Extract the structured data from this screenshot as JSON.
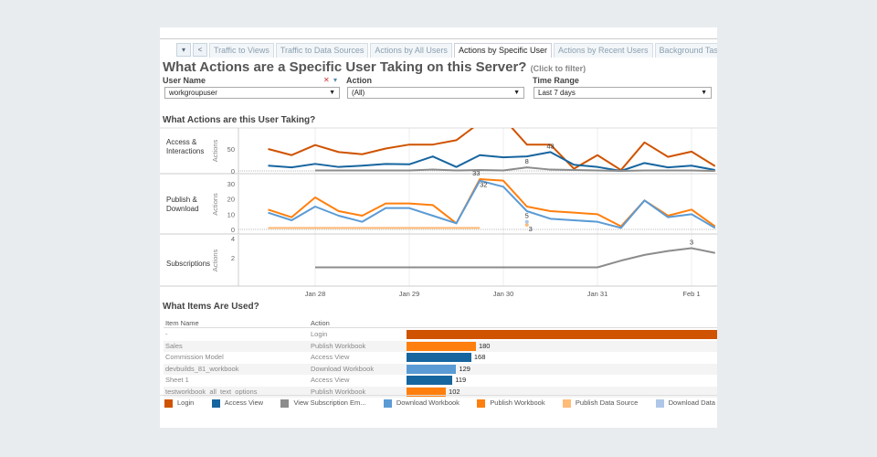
{
  "tabs": {
    "controls": {
      "menu": "▾",
      "prev": "<"
    },
    "items": [
      {
        "label": "Traffic to Views",
        "active": false
      },
      {
        "label": "Traffic to Data Sources",
        "active": false
      },
      {
        "label": "Actions by All Users",
        "active": false
      },
      {
        "label": "Actions by Specific User",
        "active": true
      },
      {
        "label": "Actions by Recent Users",
        "active": false
      },
      {
        "label": "Background Tasks",
        "active": false
      }
    ]
  },
  "header": {
    "title": "What Actions are a Specific User Taking on this Server?",
    "hint": "(Click to filter)"
  },
  "filters": {
    "user": {
      "label": "User Name",
      "value": "workgroupuser"
    },
    "action": {
      "label": "Action",
      "value": "(All)"
    },
    "time": {
      "label": "Time Range",
      "value": "Last 7 days"
    }
  },
  "colors": {
    "Login": "#cf5300",
    "Access View": "#17659f",
    "View Subscription Email": "#8c8c8c",
    "Download Workbook": "#5b9bd5",
    "Publish Workbook": "#ff7f0e",
    "Publish Data Source": "#ffbb78",
    "Download Data Source": "#aec7e8"
  },
  "chart_data": [
    {
      "type": "line",
      "title": "What Actions are this User Taking?",
      "x": [
        "Jan 27 12:00",
        "Jan 27 18:00",
        "Jan 28 00:00",
        "Jan 28 06:00",
        "Jan 28 12:00",
        "Jan 28 18:00",
        "Jan 29 00:00",
        "Jan 29 06:00",
        "Jan 29 12:00",
        "Jan 29 18:00",
        "Jan 30 00:00",
        "Jan 30 06:00",
        "Jan 30 12:00",
        "Jan 30 18:00",
        "Jan 31 00:00",
        "Jan 31 06:00",
        "Jan 31 12:00",
        "Jan 31 18:00",
        "Feb 1 00:00",
        "Feb 1 06:00"
      ],
      "x_ticks": [
        "Jan 28",
        "Jan 29",
        "Jan 30",
        "Jan 31",
        "Feb 1"
      ],
      "grid": true,
      "panes": [
        {
          "label": "Access & Interactions",
          "ylabel": "Actions",
          "y_ticks": [
            0,
            50
          ],
          "ylim": [
            0,
            95
          ],
          "series": [
            {
              "name": "Login",
              "values": [
                50,
                36,
                59,
                43,
                38,
                51,
                60,
                60,
                70,
                110,
                120,
                60,
                60,
                5,
                36,
                2,
                65,
                32,
                44,
                11
              ]
            },
            {
              "name": "Access View",
              "values": [
                12,
                8,
                16,
                9,
                12,
                16,
                15,
                33,
                9,
                36,
                31,
                33,
                43,
                14,
                9,
                0,
                18,
                8,
                12,
                2
              ]
            },
            {
              "name": "View Subscription Email",
              "values": [
                null,
                null,
                1,
                1,
                1,
                1,
                1,
                3,
                1,
                2,
                1,
                8,
                3,
                2,
                1,
                0,
                1,
                1,
                1,
                0
              ]
            }
          ],
          "labels": [
            {
              "series": "View Subscription Email",
              "index": 11,
              "text": "8"
            },
            {
              "series": "Access View",
              "index": 12,
              "text": "43"
            }
          ]
        },
        {
          "label": "Publish & Download",
          "ylabel": "Actions",
          "y_ticks": [
            0,
            10,
            20,
            30
          ],
          "ylim": [
            0,
            35
          ],
          "series": [
            {
              "name": "Publish Workbook",
              "values": [
                13,
                8,
                21,
                12,
                9,
                17,
                17,
                16,
                4,
                33,
                32,
                15,
                12,
                11,
                10,
                2,
                19,
                9,
                13,
                2
              ]
            },
            {
              "name": "Download Workbook",
              "values": [
                11,
                6,
                15,
                9,
                5,
                14,
                14,
                9,
                4,
                32,
                28,
                12,
                7,
                6,
                5,
                1,
                19,
                8,
                10,
                1
              ]
            },
            {
              "name": "Publish Data Source",
              "values": [
                1,
                1,
                1,
                1,
                1,
                1,
                1,
                1,
                1,
                1,
                null,
                3,
                null,
                null,
                null,
                null,
                null,
                null,
                null,
                null
              ]
            },
            {
              "name": "Download Data Source",
              "values": [
                null,
                null,
                null,
                null,
                null,
                null,
                null,
                null,
                null,
                null,
                null,
                5,
                null,
                null,
                null,
                null,
                null,
                null,
                null,
                null
              ]
            }
          ],
          "labels": [
            {
              "series": "Publish Workbook",
              "index": 9,
              "text": "33"
            },
            {
              "series": "Download Workbook",
              "index": 9,
              "text": "32"
            },
            {
              "series": "Download Data Source",
              "index": 11,
              "text": "5"
            },
            {
              "series": "Publish Data Source",
              "index": 11,
              "text": "3"
            }
          ]
        },
        {
          "label": "Subscriptions",
          "ylabel": "Actions",
          "y_ticks": [
            2,
            4
          ],
          "ylim": [
            0.4,
            4
          ],
          "series": [
            {
              "name": "View Subscription Email",
              "values": [
                null,
                null,
                1,
                1,
                1,
                1,
                1,
                1,
                1,
                1,
                1,
                1,
                1,
                1,
                1,
                1.7,
                2.3,
                2.7,
                3,
                2.5
              ]
            }
          ],
          "labels": [
            {
              "series": "View Subscription Email",
              "index": 18,
              "text": "3"
            }
          ]
        }
      ]
    },
    {
      "type": "bar",
      "title": "What Items Are Used?",
      "columns": [
        "Item Name",
        "Action"
      ],
      "rows": [
        {
          "item": "-",
          "action": "Login",
          "value": null
        },
        {
          "item": "Sales",
          "action": "Publish Workbook",
          "value": 180
        },
        {
          "item": "Commission Model",
          "action": "Access View",
          "value": 168
        },
        {
          "item": "devbuilds_81_workbook",
          "action": "Download Workbook",
          "value": 129
        },
        {
          "item": "Sheet 1",
          "action": "Access View",
          "value": 119
        },
        {
          "item": "testworkbook_all_text_options",
          "action": "Publish Workbook",
          "value": 102
        }
      ]
    }
  ],
  "legend": [
    {
      "key": "Login",
      "label": "Login"
    },
    {
      "key": "Access View",
      "label": "Access View"
    },
    {
      "key": "View Subscription Email",
      "label": "View Subscription Em..."
    },
    {
      "key": "Download Workbook",
      "label": "Download Workbook"
    },
    {
      "key": "Publish Workbook",
      "label": "Publish Workbook"
    },
    {
      "key": "Publish Data Source",
      "label": "Publish Data Source"
    },
    {
      "key": "Download Data Source",
      "label": "Download Data"
    }
  ]
}
